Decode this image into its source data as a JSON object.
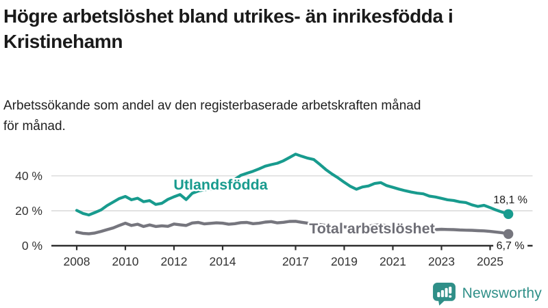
{
  "page": {
    "title_lines": [
      "Högre arbetslöshet bland utrikes- än inrikesfödda i",
      "Kristinehamn"
    ],
    "subtitle_lines": [
      "Arbetssökande som andel av den registerbaserade arbetskraften månad",
      "för månad."
    ]
  },
  "footer": {
    "brand": "Newsworthy",
    "logo_icon": "bar-chart-speech-bubble-icon"
  },
  "colors": {
    "accent_teal": "#189b8e",
    "series_gray": "#76767e",
    "logo_teal": "#2f8f88",
    "grid": "#dcdcdc",
    "axis": "#2e2e2e",
    "annotation_text": "#1a1a1a"
  },
  "chart_data": {
    "type": "line",
    "title": "Högre arbetslöshet bland utrikes- än inrikesfödda i Kristinehamn",
    "subtitle": "Arbetssökande som andel av den registerbaserade arbetskraften månad för månad.",
    "x_unit": "decimal-year (monthly series, approximated at quarterly resolution)",
    "x_start": 2008,
    "x_step": 0.25,
    "xticks": [
      2008,
      2010,
      2012,
      2014,
      2017,
      2019,
      2021,
      2023,
      2025
    ],
    "yticks": [
      {
        "value": 40,
        "label": "40 %"
      },
      {
        "value": 20,
        "label": "20 %"
      },
      {
        "value": 0,
        "label": "0 %"
      }
    ],
    "ylim": [
      0,
      56
    ],
    "xlim": [
      2007,
      2026.7
    ],
    "grid": "horizontal",
    "legend": "inline-labels",
    "series": [
      {
        "name": "Utlandsfödda",
        "color": "#189b8e",
        "end_label": "18,1 %",
        "end_value": 18.1,
        "values": [
          20.2,
          18.5,
          17.6,
          19.0,
          20.5,
          23.0,
          25.0,
          27.0,
          28.2,
          26.3,
          27.2,
          25.2,
          25.8,
          23.6,
          24.3,
          26.5,
          28.0,
          29.3,
          26.4,
          30.0,
          31.3,
          32.0,
          32.3,
          33.5,
          35.0,
          36.5,
          38.0,
          40.3,
          41.5,
          42.6,
          44.0,
          45.5,
          46.4,
          47.2,
          48.6,
          50.5,
          52.4,
          51.2,
          50.1,
          49.3,
          46.5,
          43.5,
          41.0,
          38.8,
          36.3,
          34.0,
          32.3,
          33.6,
          34.2,
          35.6,
          36.1,
          34.4,
          33.4,
          32.4,
          31.5,
          30.7,
          30.1,
          29.7,
          28.4,
          27.9,
          27.1,
          26.3,
          25.9,
          25.1,
          24.7,
          23.4,
          22.5,
          23.1,
          21.8,
          20.4,
          19.2,
          18.1
        ]
      },
      {
        "name": "Total arbetslöshet",
        "color": "#76767e",
        "end_label": "6,7 %",
        "end_value": 6.7,
        "values": [
          7.8,
          7.1,
          6.8,
          7.3,
          8.2,
          9.2,
          10.2,
          11.6,
          12.9,
          11.6,
          12.3,
          11.0,
          11.9,
          11.0,
          11.4,
          11.1,
          12.4,
          12.0,
          11.6,
          13.0,
          13.3,
          12.5,
          12.8,
          13.1,
          12.9,
          12.3,
          12.6,
          13.2,
          13.3,
          12.6,
          12.9,
          13.5,
          13.8,
          13.1,
          13.4,
          13.9,
          14.0,
          13.4,
          12.9,
          12.5,
          12.1,
          11.6,
          11.3,
          11.0,
          10.8,
          10.5,
          10.4,
          10.8,
          11.1,
          11.8,
          12.0,
          11.5,
          11.0,
          10.6,
          10.2,
          10.0,
          9.8,
          9.6,
          9.4,
          9.2,
          9.4,
          9.3,
          9.2,
          9.0,
          8.9,
          8.8,
          8.6,
          8.5,
          8.2,
          7.8,
          7.4,
          6.7
        ]
      }
    ]
  }
}
